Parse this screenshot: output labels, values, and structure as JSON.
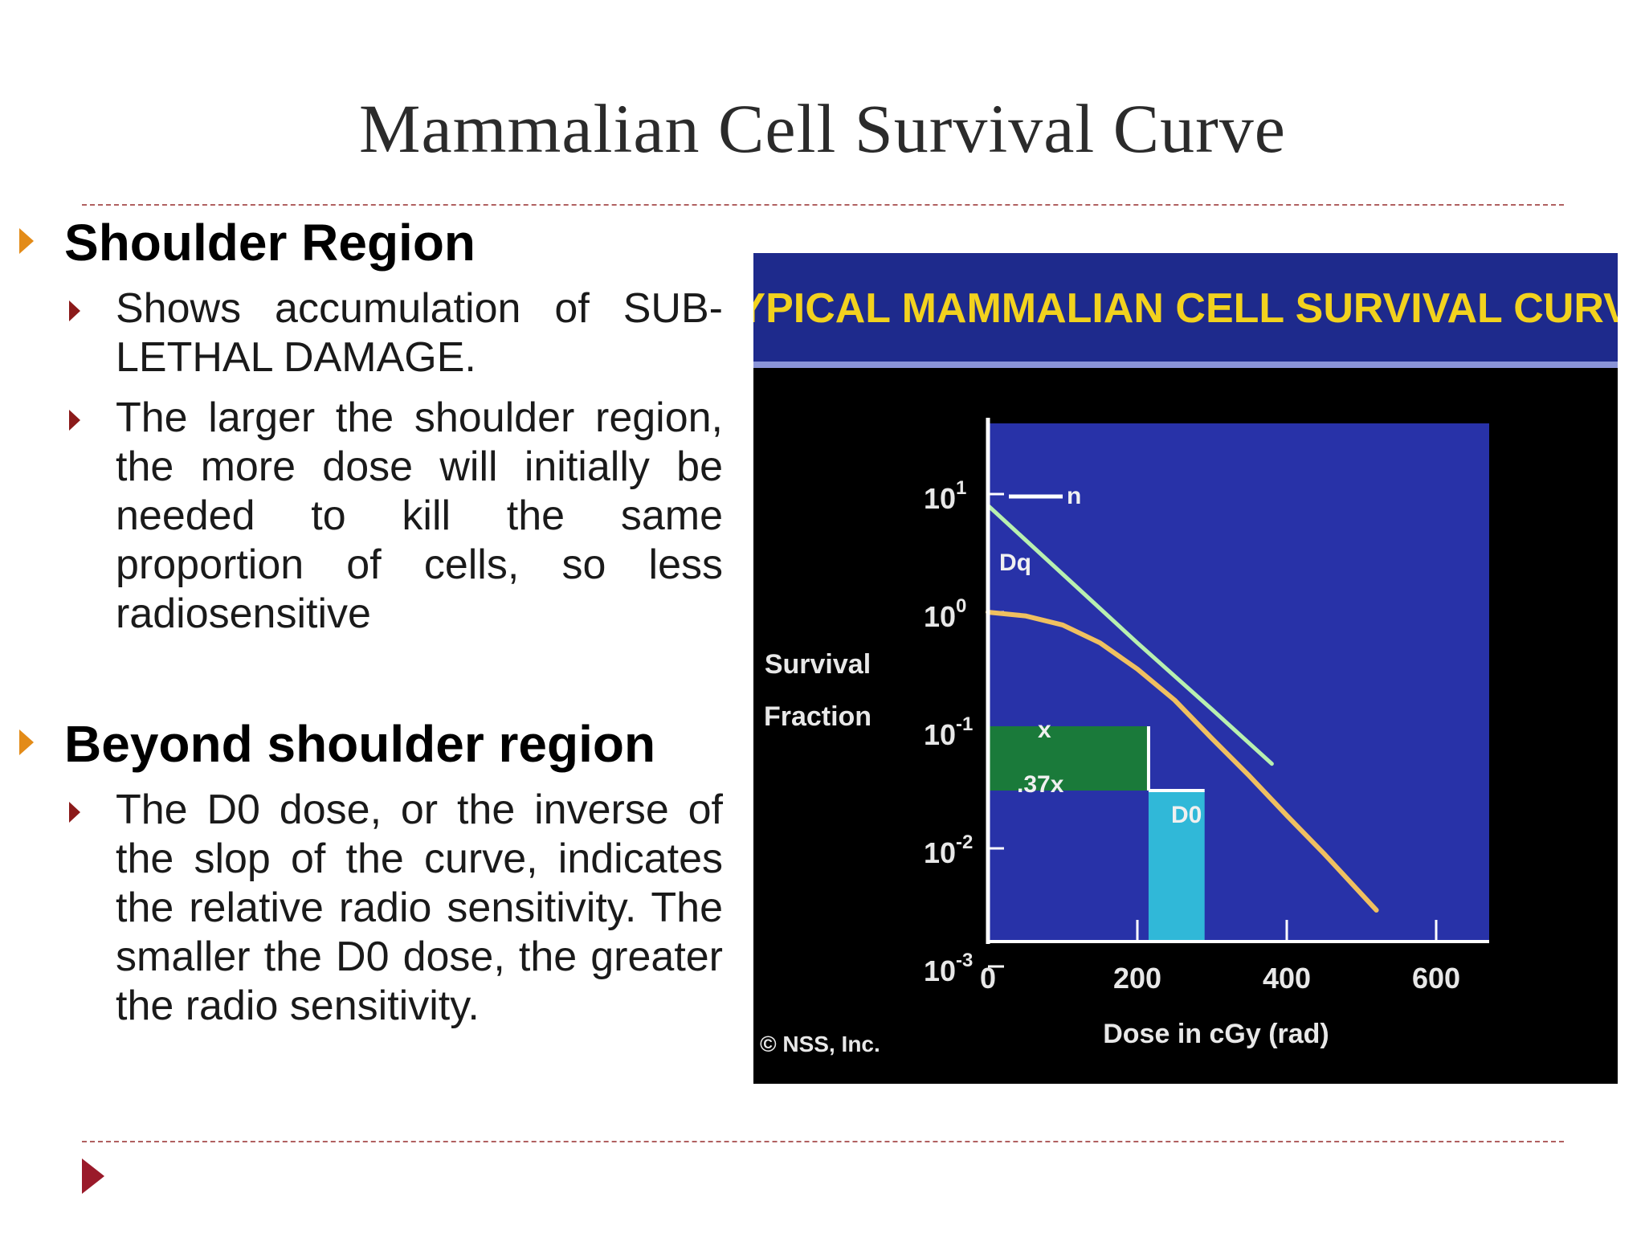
{
  "slide": {
    "title": "Mammalian Cell  Survival Curve"
  },
  "left_column": {
    "sections": [
      {
        "heading": "Shoulder Region",
        "items": [
          "Shows accumulation of SUB-LETHAL DAMAGE.",
          "The larger the shoulder region, the more dose will initially be needed to kill the same proportion of cells, so less radiosensitive"
        ]
      },
      {
        "heading": "Beyond shoulder region",
        "items": [
          "The D0 dose, or the inverse of the slop of the curve, indicates the relative radio sensitivity. The smaller the D0 dose, the greater the radio sensitivity."
        ]
      }
    ]
  },
  "figure": {
    "banner": "TYPICAL MAMMALIAN CELL SURVIVAL CURVE",
    "copyright": "© NSS, Inc.",
    "colors": {
      "banner_bg": "#1e2a8c",
      "banner_text": "#f2d21e",
      "plot_bg": "#2832a8",
      "curve": "#f0c060",
      "extrapolation": "#b8f0b0",
      "band": "#1a7a3a",
      "d0_box": "#30b8d8"
    },
    "annotations": {
      "n": "n",
      "dq": "Dq",
      "x": "x",
      "x37": ".37x",
      "d0": "D0"
    }
  },
  "chart_data": {
    "type": "line",
    "title": "TYPICAL MAMMALIAN CELL SURVIVAL CURVE",
    "xlabel": "Dose in cGy (rad)",
    "ylabel": "Survival Fraction",
    "x_ticks": [
      "0",
      "200",
      "400",
      "600"
    ],
    "y_ticks": [
      "10^1",
      "10^0",
      "10^-1",
      "10^-2",
      "10^-3"
    ],
    "xlim": [
      0,
      650
    ],
    "ylim_log10": [
      -3,
      1
    ],
    "y_scale": "log",
    "series": [
      {
        "x": [
          0,
          50,
          100,
          150,
          200,
          250,
          300,
          350,
          400,
          450,
          520
        ],
        "y": [
          1.0,
          0.93,
          0.78,
          0.55,
          0.33,
          0.18,
          0.085,
          0.041,
          0.019,
          0.009,
          0.003
        ]
      },
      {
        "x": [
          0,
          100,
          200,
          300,
          380
        ],
        "y": [
          8,
          2.1,
          0.55,
          0.15,
          0.052
        ]
      }
    ]
  }
}
